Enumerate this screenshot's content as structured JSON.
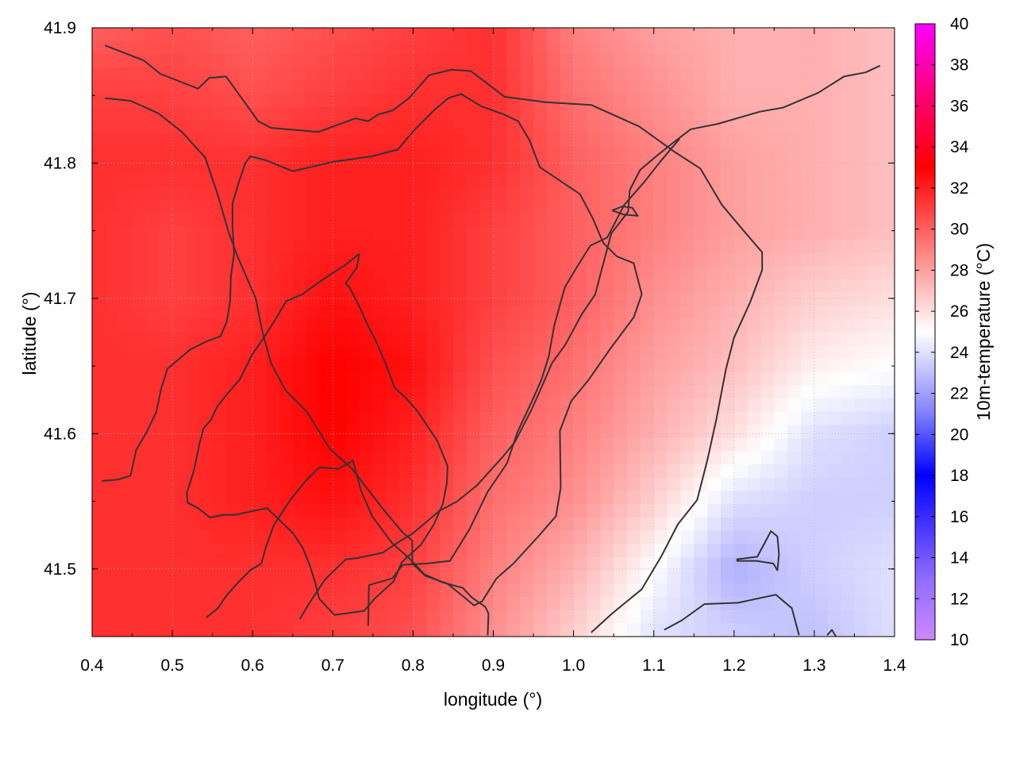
{
  "chart_data": {
    "type": "heatmap",
    "title": "",
    "xlabel": "longitude (°)",
    "ylabel": "latitude (°)",
    "colorbar_label": "10m-temperature (°C)",
    "xlim": [
      0.4,
      1.4
    ],
    "ylim": [
      41.45,
      41.9
    ],
    "x_ticks": [
      0.4,
      0.5,
      0.6,
      0.7,
      0.8,
      0.9,
      1.0,
      1.1,
      1.2,
      1.3,
      1.4
    ],
    "x_tick_labels": [
      "0.4",
      "0.5",
      "0.6",
      "0.7",
      "0.8",
      "0.9",
      "1.0",
      "1.1",
      "1.2",
      "1.3",
      "1.4"
    ],
    "y_ticks": [
      41.5,
      41.6,
      41.7,
      41.8,
      41.9
    ],
    "y_tick_labels": [
      "41.5",
      "41.6",
      "41.7",
      "41.8",
      "41.9"
    ],
    "colorbar_range": [
      10,
      40
    ],
    "colorbar_ticks": [
      10,
      12,
      14,
      16,
      18,
      20,
      22,
      24,
      26,
      28,
      30,
      32,
      34,
      36,
      38,
      40
    ],
    "colorbar_tick_labels": [
      "10",
      "12",
      "14",
      "16",
      "18",
      "20",
      "22",
      "24",
      "26",
      "28",
      "30",
      "32",
      "34",
      "36",
      "38",
      "40"
    ],
    "colorscale": [
      {
        "value": 10,
        "color": "#cc88ff"
      },
      {
        "value": 13,
        "color": "#8f6cff"
      },
      {
        "value": 18,
        "color": "#0000ff"
      },
      {
        "value": 21,
        "color": "#7f7fff"
      },
      {
        "value": 25,
        "color": "#ffffff"
      },
      {
        "value": 29,
        "color": "#ff7f7f"
      },
      {
        "value": 33,
        "color": "#ff0000"
      },
      {
        "value": 37,
        "color": "#ff0088"
      },
      {
        "value": 40,
        "color": "#ff00ff"
      }
    ],
    "grid": true,
    "grid_style": "dotted",
    "contour_color": "#333333",
    "temperature_field": {
      "lon": [
        0.4,
        0.5,
        0.6,
        0.7,
        0.8,
        0.9,
        1.0,
        1.1,
        1.2,
        1.3,
        1.4
      ],
      "lat": [
        41.9,
        41.85,
        41.8,
        41.75,
        41.7,
        41.65,
        41.6,
        41.55,
        41.5,
        41.45
      ],
      "values": [
        [
          30,
          30.5,
          30,
          30.5,
          31,
          31.5,
          29,
          28,
          27.5,
          27.5,
          27
        ],
        [
          31,
          31,
          30.5,
          31,
          31.5,
          31.5,
          29.5,
          28.5,
          27.5,
          27.5,
          27
        ],
        [
          31.5,
          31.5,
          31.5,
          32,
          32,
          31.5,
          30,
          29,
          28,
          27.5,
          27
        ],
        [
          31.5,
          31,
          31.5,
          32,
          32,
          31,
          30,
          29,
          28,
          27.5,
          27
        ],
        [
          31.5,
          31,
          31.5,
          32.5,
          32,
          31,
          30,
          28.5,
          27.5,
          26.5,
          26
        ],
        [
          31.5,
          31.5,
          32,
          33,
          32.5,
          30.5,
          29.5,
          28,
          27,
          25.5,
          25
        ],
        [
          31.5,
          31.5,
          32,
          33,
          32,
          30,
          29,
          27.5,
          26,
          24,
          23.5
        ],
        [
          31.5,
          31.5,
          32,
          32.5,
          31.5,
          29.5,
          28.5,
          26.5,
          24,
          23.5,
          23.5
        ],
        [
          31.5,
          31.5,
          31.5,
          31.5,
          31,
          29,
          27.5,
          25,
          22.5,
          23.5,
          24
        ],
        [
          31.5,
          31.5,
          31.5,
          31,
          30.5,
          28.5,
          26.5,
          24,
          23.5,
          23,
          24
        ]
      ]
    },
    "contours": [
      [
        [
          0.416,
          41.887
        ],
        [
          0.464,
          41.876
        ],
        [
          0.485,
          41.866
        ],
        [
          0.532,
          41.855
        ],
        [
          0.546,
          41.863
        ],
        [
          0.567,
          41.864
        ],
        [
          0.607,
          41.831
        ],
        [
          0.623,
          41.826
        ],
        [
          0.682,
          41.823
        ],
        [
          0.728,
          41.833
        ],
        [
          0.744,
          41.831
        ],
        [
          0.757,
          41.836
        ],
        [
          0.775,
          41.839
        ],
        [
          0.795,
          41.848
        ],
        [
          0.82,
          41.865
        ],
        [
          0.848,
          41.869
        ],
        [
          0.872,
          41.868
        ],
        [
          0.914,
          41.849
        ],
        [
          0.965,
          41.845
        ],
        [
          1.022,
          41.843
        ],
        [
          1.082,
          41.827
        ],
        [
          1.124,
          41.809
        ],
        [
          1.158,
          41.796
        ],
        [
          1.185,
          41.769
        ],
        [
          1.212,
          41.75
        ],
        [
          1.235,
          41.734
        ],
        [
          1.235,
          41.721
        ],
        [
          1.22,
          41.697
        ],
        [
          1.2,
          41.671
        ],
        [
          1.19,
          41.648
        ],
        [
          1.178,
          41.611
        ],
        [
          1.167,
          41.581
        ],
        [
          1.154,
          41.551
        ],
        [
          1.13,
          41.533
        ],
        [
          1.11,
          41.51
        ],
        [
          1.085,
          41.485
        ],
        [
          1.048,
          41.467
        ],
        [
          1.022,
          41.453
        ]
      ],
      [
        [
          0.416,
          41.848
        ],
        [
          0.448,
          41.846
        ],
        [
          0.482,
          41.837
        ],
        [
          0.512,
          41.823
        ],
        [
          0.541,
          41.804
        ],
        [
          0.557,
          41.776
        ],
        [
          0.57,
          41.749
        ],
        [
          0.582,
          41.73
        ],
        [
          0.604,
          41.7
        ],
        [
          0.612,
          41.676
        ],
        [
          0.623,
          41.652
        ],
        [
          0.641,
          41.632
        ],
        [
          0.668,
          41.616
        ],
        [
          0.696,
          41.589
        ],
        [
          0.724,
          41.574
        ],
        [
          0.742,
          41.56
        ],
        [
          0.763,
          41.544
        ],
        [
          0.787,
          41.527
        ],
        [
          0.799,
          41.521
        ],
        [
          0.799,
          41.504
        ],
        [
          0.815,
          41.495
        ],
        [
          0.843,
          41.489
        ],
        [
          0.864,
          41.479
        ],
        [
          0.876,
          41.473
        ],
        [
          0.886,
          41.476
        ],
        [
          0.904,
          41.493
        ],
        [
          0.925,
          41.504
        ],
        [
          0.956,
          41.524
        ],
        [
          0.978,
          41.539
        ],
        [
          0.984,
          41.56
        ],
        [
          0.983,
          41.602
        ],
        [
          0.997,
          41.624
        ],
        [
          1.019,
          41.64
        ],
        [
          1.046,
          41.663
        ],
        [
          1.075,
          41.686
        ],
        [
          1.085,
          41.703
        ],
        [
          1.075,
          41.726
        ],
        [
          1.054,
          41.731
        ],
        [
          1.037,
          41.741
        ],
        [
          1.024,
          41.759
        ],
        [
          1.008,
          41.777
        ],
        [
          0.983,
          41.787
        ],
        [
          0.958,
          41.797
        ],
        [
          0.945,
          41.817
        ],
        [
          0.931,
          41.831
        ],
        [
          0.913,
          41.836
        ],
        [
          0.885,
          41.842
        ],
        [
          0.86,
          41.851
        ],
        [
          0.844,
          41.848
        ],
        [
          0.826,
          41.839
        ],
        [
          0.801,
          41.824
        ],
        [
          0.781,
          41.81
        ],
        [
          0.749,
          41.805
        ],
        [
          0.701,
          41.801
        ],
        [
          0.65,
          41.794
        ],
        [
          0.617,
          41.802
        ],
        [
          0.597,
          41.805
        ],
        [
          0.591,
          41.8
        ],
        [
          0.583,
          41.786
        ],
        [
          0.575,
          41.77
        ],
        [
          0.575,
          41.753
        ],
        [
          0.577,
          41.733
        ],
        [
          0.573,
          41.716
        ],
        [
          0.572,
          41.698
        ],
        [
          0.568,
          41.683
        ],
        [
          0.56,
          41.672
        ],
        [
          0.542,
          41.668
        ],
        [
          0.522,
          41.662
        ],
        [
          0.508,
          41.655
        ],
        [
          0.494,
          41.648
        ],
        [
          0.486,
          41.633
        ],
        [
          0.48,
          41.616
        ],
        [
          0.468,
          41.601
        ],
        [
          0.455,
          41.588
        ],
        [
          0.448,
          41.569
        ],
        [
          0.432,
          41.566
        ],
        [
          0.412,
          41.565
        ]
      ],
      [
        [
          0.542,
          41.464
        ],
        [
          0.557,
          41.471
        ],
        [
          0.567,
          41.48
        ],
        [
          0.582,
          41.49
        ],
        [
          0.597,
          41.499
        ],
        [
          0.611,
          41.504
        ],
        [
          0.617,
          41.517
        ],
        [
          0.627,
          41.533
        ],
        [
          0.647,
          41.551
        ],
        [
          0.666,
          41.565
        ],
        [
          0.683,
          41.575
        ],
        [
          0.707,
          41.574
        ],
        [
          0.725,
          41.58
        ],
        [
          0.735,
          41.558
        ],
        [
          0.749,
          41.539
        ],
        [
          0.774,
          41.519
        ],
        [
          0.795,
          41.508
        ],
        [
          0.814,
          41.496
        ],
        [
          0.837,
          41.49
        ],
        [
          0.862,
          41.486
        ],
        [
          0.873,
          41.479
        ],
        [
          0.89,
          41.472
        ],
        [
          0.894,
          41.467
        ],
        [
          0.893,
          41.451
        ]
      ],
      [
        [
          0.659,
          41.463
        ],
        [
          0.671,
          41.475
        ],
        [
          0.69,
          41.492
        ],
        [
          0.716,
          41.507
        ],
        [
          0.73,
          41.508
        ],
        [
          0.762,
          41.512
        ],
        [
          0.785,
          41.521
        ],
        [
          0.799,
          41.526
        ],
        [
          0.833,
          41.543
        ],
        [
          0.855,
          41.55
        ],
        [
          0.88,
          41.562
        ],
        [
          0.912,
          41.583
        ],
        [
          0.927,
          41.594
        ],
        [
          0.947,
          41.617
        ],
        [
          0.957,
          41.63
        ],
        [
          0.973,
          41.652
        ],
        [
          0.99,
          41.666
        ],
        [
          1.01,
          41.688
        ],
        [
          1.027,
          41.703
        ],
        [
          1.034,
          41.719
        ],
        [
          1.047,
          41.748
        ],
        [
          1.068,
          41.764
        ],
        [
          1.07,
          41.78
        ],
        [
          1.083,
          41.795
        ],
        [
          1.105,
          41.806
        ],
        [
          1.124,
          41.815
        ],
        [
          1.146,
          41.825
        ],
        [
          1.18,
          41.829
        ],
        [
          1.232,
          41.838
        ],
        [
          1.261,
          41.841
        ],
        [
          1.305,
          41.852
        ],
        [
          1.337,
          41.864
        ],
        [
          1.364,
          41.867
        ],
        [
          1.382,
          41.872
        ]
      ],
      [
        [
          0.744,
          41.458
        ],
        [
          0.745,
          41.488
        ],
        [
          0.774,
          41.493
        ],
        [
          0.787,
          41.503
        ],
        [
          0.816,
          41.504
        ],
        [
          0.846,
          41.506
        ],
        [
          0.87,
          41.529
        ],
        [
          0.893,
          41.557
        ],
        [
          0.917,
          41.578
        ],
        [
          0.93,
          41.601
        ],
        [
          0.949,
          41.625
        ],
        [
          0.96,
          41.64
        ],
        [
          0.969,
          41.657
        ],
        [
          0.976,
          41.68
        ],
        [
          0.989,
          41.708
        ],
        [
          1.003,
          41.722
        ],
        [
          1.021,
          41.739
        ],
        [
          1.042,
          41.745
        ],
        [
          1.063,
          41.769
        ],
        [
          1.088,
          41.786
        ],
        [
          1.108,
          41.801
        ],
        [
          1.132,
          41.818
        ]
      ],
      [
        [
          0.733,
          41.733
        ],
        [
          0.714,
          41.724
        ],
        [
          0.698,
          41.718
        ],
        [
          0.683,
          41.712
        ],
        [
          0.662,
          41.703
        ],
        [
          0.642,
          41.698
        ],
        [
          0.628,
          41.684
        ],
        [
          0.613,
          41.67
        ],
        [
          0.599,
          41.658
        ],
        [
          0.584,
          41.64
        ],
        [
          0.568,
          41.629
        ],
        [
          0.556,
          41.62
        ],
        [
          0.548,
          41.61
        ],
        [
          0.539,
          41.604
        ],
        [
          0.534,
          41.593
        ],
        [
          0.527,
          41.573
        ],
        [
          0.518,
          41.556
        ],
        [
          0.519,
          41.549
        ],
        [
          0.532,
          41.545
        ],
        [
          0.547,
          41.538
        ],
        [
          0.564,
          41.54
        ],
        [
          0.578,
          41.54
        ],
        [
          0.594,
          41.542
        ],
        [
          0.618,
          41.545
        ],
        [
          0.632,
          41.537
        ],
        [
          0.651,
          41.526
        ],
        [
          0.663,
          41.515
        ],
        [
          0.671,
          41.503
        ],
        [
          0.678,
          41.49
        ],
        [
          0.683,
          41.478
        ],
        [
          0.702,
          41.466
        ],
        [
          0.739,
          41.469
        ],
        [
          0.752,
          41.478
        ],
        [
          0.776,
          41.491
        ],
        [
          0.786,
          41.505
        ],
        [
          0.81,
          41.518
        ],
        [
          0.826,
          41.533
        ],
        [
          0.837,
          41.548
        ],
        [
          0.842,
          41.563
        ],
        [
          0.843,
          41.576
        ],
        [
          0.83,
          41.595
        ],
        [
          0.805,
          41.617
        ],
        [
          0.79,
          41.627
        ],
        [
          0.777,
          41.634
        ],
        [
          0.767,
          41.65
        ],
        [
          0.754,
          41.668
        ],
        [
          0.742,
          41.682
        ],
        [
          0.733,
          41.694
        ],
        [
          0.721,
          41.708
        ],
        [
          0.716,
          41.711
        ],
        [
          0.73,
          41.723
        ],
        [
          0.733,
          41.733
        ]
      ],
      [
        [
          1.203,
          41.507
        ],
        [
          1.229,
          41.509
        ],
        [
          1.246,
          41.528
        ],
        [
          1.254,
          41.524
        ],
        [
          1.256,
          41.511
        ],
        [
          1.254,
          41.499
        ],
        [
          1.249,
          41.504
        ],
        [
          1.228,
          41.506
        ],
        [
          1.203,
          41.506
        ]
      ],
      [
        [
          1.048,
          41.765
        ],
        [
          1.062,
          41.762
        ],
        [
          1.08,
          41.761
        ],
        [
          1.073,
          41.767
        ],
        [
          1.061,
          41.768
        ],
        [
          1.048,
          41.765
        ]
      ],
      [
        [
          1.113,
          41.455
        ],
        [
          1.135,
          41.462
        ],
        [
          1.163,
          41.474
        ],
        [
          1.205,
          41.475
        ],
        [
          1.252,
          41.481
        ],
        [
          1.272,
          41.471
        ],
        [
          1.281,
          41.451
        ]
      ],
      [
        [
          1.316,
          41.451
        ],
        [
          1.322,
          41.455
        ],
        [
          1.328,
          41.449
        ]
      ]
    ]
  }
}
